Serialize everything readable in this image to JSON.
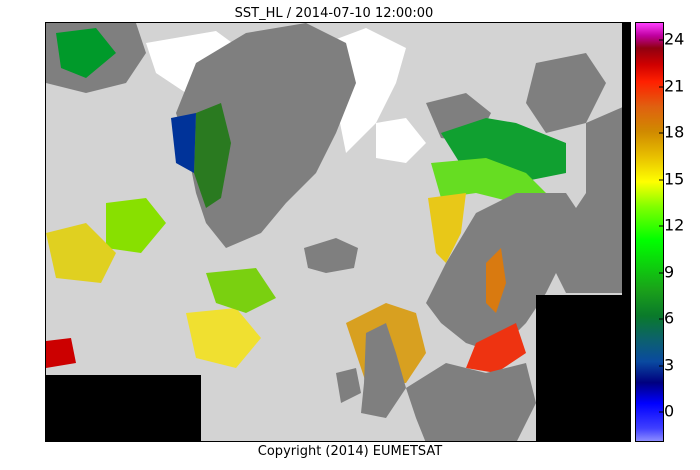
{
  "title": "SST_HL / 2014-07-10 12:00:00",
  "copyright": "Copyright (2014)  EUMETSAT",
  "colorbar": {
    "ticks": [
      "24",
      "21",
      "18",
      "15",
      "12",
      "9",
      "6",
      "3",
      "0"
    ],
    "colors": {
      "low": "#8c8cff",
      "cold": "#0000ff",
      "mid": "#00ff00",
      "warm": "#ffff00",
      "hot": "#ff2000",
      "max": "#ff40ff"
    }
  },
  "map": {
    "colors": {
      "land": "#7f7f7f",
      "no_data": "#d3d3d3",
      "ice": "#ffffff",
      "outside": "#000000"
    }
  }
}
